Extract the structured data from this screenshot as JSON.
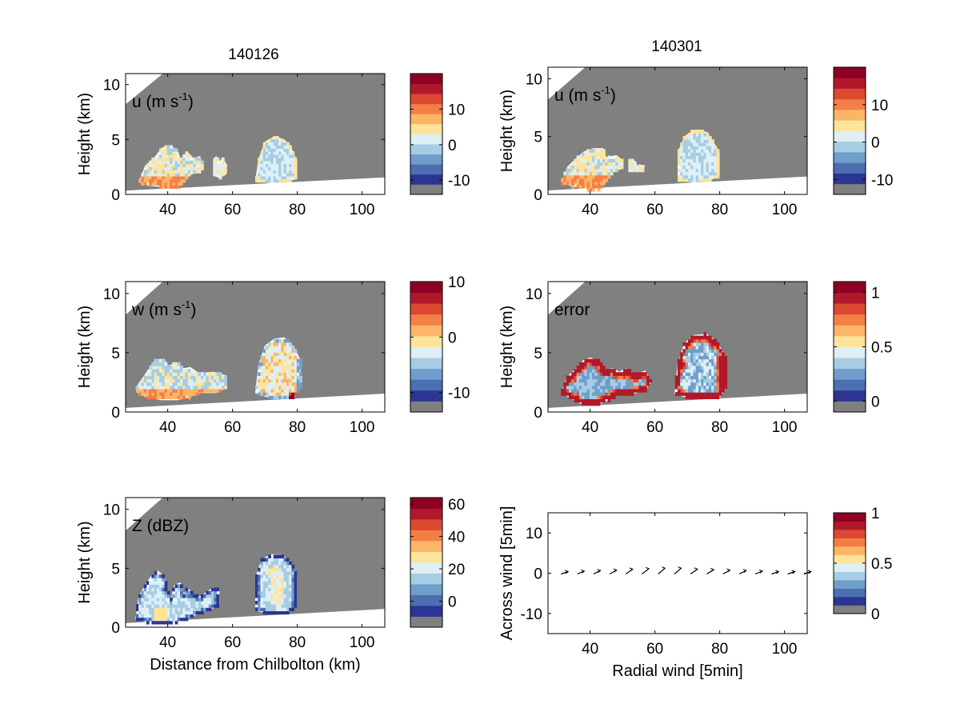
{
  "titles": {
    "left": "140126",
    "right": "140301"
  },
  "colormap": [
    "#2c3592",
    "#4b6fb0",
    "#6f9ecb",
    "#a6cde3",
    "#deeff6",
    "#fde49a",
    "#fbb567",
    "#f47f46",
    "#dc4931",
    "#b1192b",
    "#8e0024"
  ],
  "fill_colors": {
    "gray": "#808080",
    "white": "#ffffff"
  },
  "chart_data": [
    {
      "type": "heatmap",
      "id": "u_140126",
      "title": "140126",
      "label": "u (m s",
      "label_sup": "-1",
      "label_end": ")",
      "ylabel": "Height (km)",
      "xlabel": "",
      "xlim": [
        27,
        107
      ],
      "ylim": [
        0,
        11
      ],
      "xticks": [
        "40",
        "60",
        "80",
        "100"
      ],
      "yticks": [
        "0",
        "5",
        "10"
      ],
      "colorbar": {
        "ticks": [
          "10",
          "0",
          "-10"
        ],
        "tick_values": [
          10,
          0,
          -10
        ],
        "range": [
          -14,
          20
        ]
      }
    },
    {
      "type": "heatmap",
      "id": "u_140301",
      "title": "140301",
      "label": "u (m s",
      "label_sup": "-1",
      "label_end": ")",
      "ylabel": "Height (km)",
      "xlabel": "",
      "xlim": [
        27,
        107
      ],
      "ylim": [
        0,
        11
      ],
      "xticks": [
        "40",
        "60",
        "80",
        "100"
      ],
      "yticks": [
        "0",
        "5",
        "10"
      ],
      "colorbar": {
        "ticks": [
          "10",
          "0",
          "-10"
        ],
        "tick_values": [
          10,
          0,
          -10
        ],
        "range": [
          -14,
          20
        ]
      }
    },
    {
      "type": "heatmap",
      "id": "w_140126",
      "title": "",
      "label": "w (m s",
      "label_sup": "-1",
      "label_end": ")",
      "ylabel": "Height (km)",
      "xlabel": "",
      "xlim": [
        27,
        107
      ],
      "ylim": [
        0,
        11
      ],
      "xticks": [
        "40",
        "60",
        "80",
        "100"
      ],
      "yticks": [
        "0",
        "5",
        "10"
      ],
      "colorbar": {
        "ticks": [
          "10",
          "0",
          "-10"
        ],
        "tick_values": [
          10,
          0,
          -10
        ],
        "range": [
          -13.5,
          10
        ]
      }
    },
    {
      "type": "heatmap",
      "id": "error_140301",
      "title": "",
      "label": "error",
      "label_sup": "",
      "label_end": "",
      "ylabel": "Height (km)",
      "xlabel": "",
      "xlim": [
        27,
        107
      ],
      "ylim": [
        0,
        11
      ],
      "xticks": [
        "40",
        "60",
        "80",
        "100"
      ],
      "yticks": [
        "0",
        "5",
        "10"
      ],
      "colorbar": {
        "ticks": [
          "1",
          "0.5",
          "0"
        ],
        "tick_values": [
          1,
          0.5,
          0
        ],
        "range": [
          -0.1,
          1.1
        ]
      }
    },
    {
      "type": "heatmap",
      "id": "Z_140126",
      "title": "",
      "label": "Z (dBZ)",
      "label_sup": "",
      "label_end": "",
      "ylabel": "Height (km)",
      "xlabel": "Distance from Chilbolton (km)",
      "xlim": [
        27,
        107
      ],
      "ylim": [
        0,
        11
      ],
      "xticks": [
        "40",
        "60",
        "80",
        "100"
      ],
      "yticks": [
        "0",
        "5",
        "10"
      ],
      "colorbar": {
        "ticks": [
          "60",
          "40",
          "20",
          "0"
        ],
        "tick_values": [
          60,
          40,
          20,
          0
        ],
        "range": [
          -16,
          64
        ]
      }
    },
    {
      "type": "scatter",
      "id": "vectors",
      "title": "",
      "label": "",
      "ylabel": "Across wind [5min]",
      "xlabel": "Radial wind [5min]",
      "xlim": [
        27,
        107
      ],
      "ylim": [
        -15,
        15
      ],
      "xticks": [
        "40",
        "60",
        "80",
        "100"
      ],
      "yticks": [
        "-10",
        "0",
        "10"
      ],
      "x": [
        31,
        36,
        41,
        46,
        51,
        56,
        61,
        66,
        71,
        76,
        81,
        86,
        91,
        96,
        101,
        106
      ],
      "y": [
        0.3,
        0.4,
        0.5,
        0.6,
        0.8,
        0.9,
        1.0,
        1.0,
        0.8,
        0.7,
        0.6,
        0.5,
        0.4,
        0.3,
        0.3,
        0.3
      ],
      "colorbar": {
        "ticks": [
          "1",
          "0.5",
          "0"
        ],
        "tick_values": [
          1,
          0.5,
          0
        ],
        "range": [
          0,
          1
        ]
      }
    }
  ]
}
